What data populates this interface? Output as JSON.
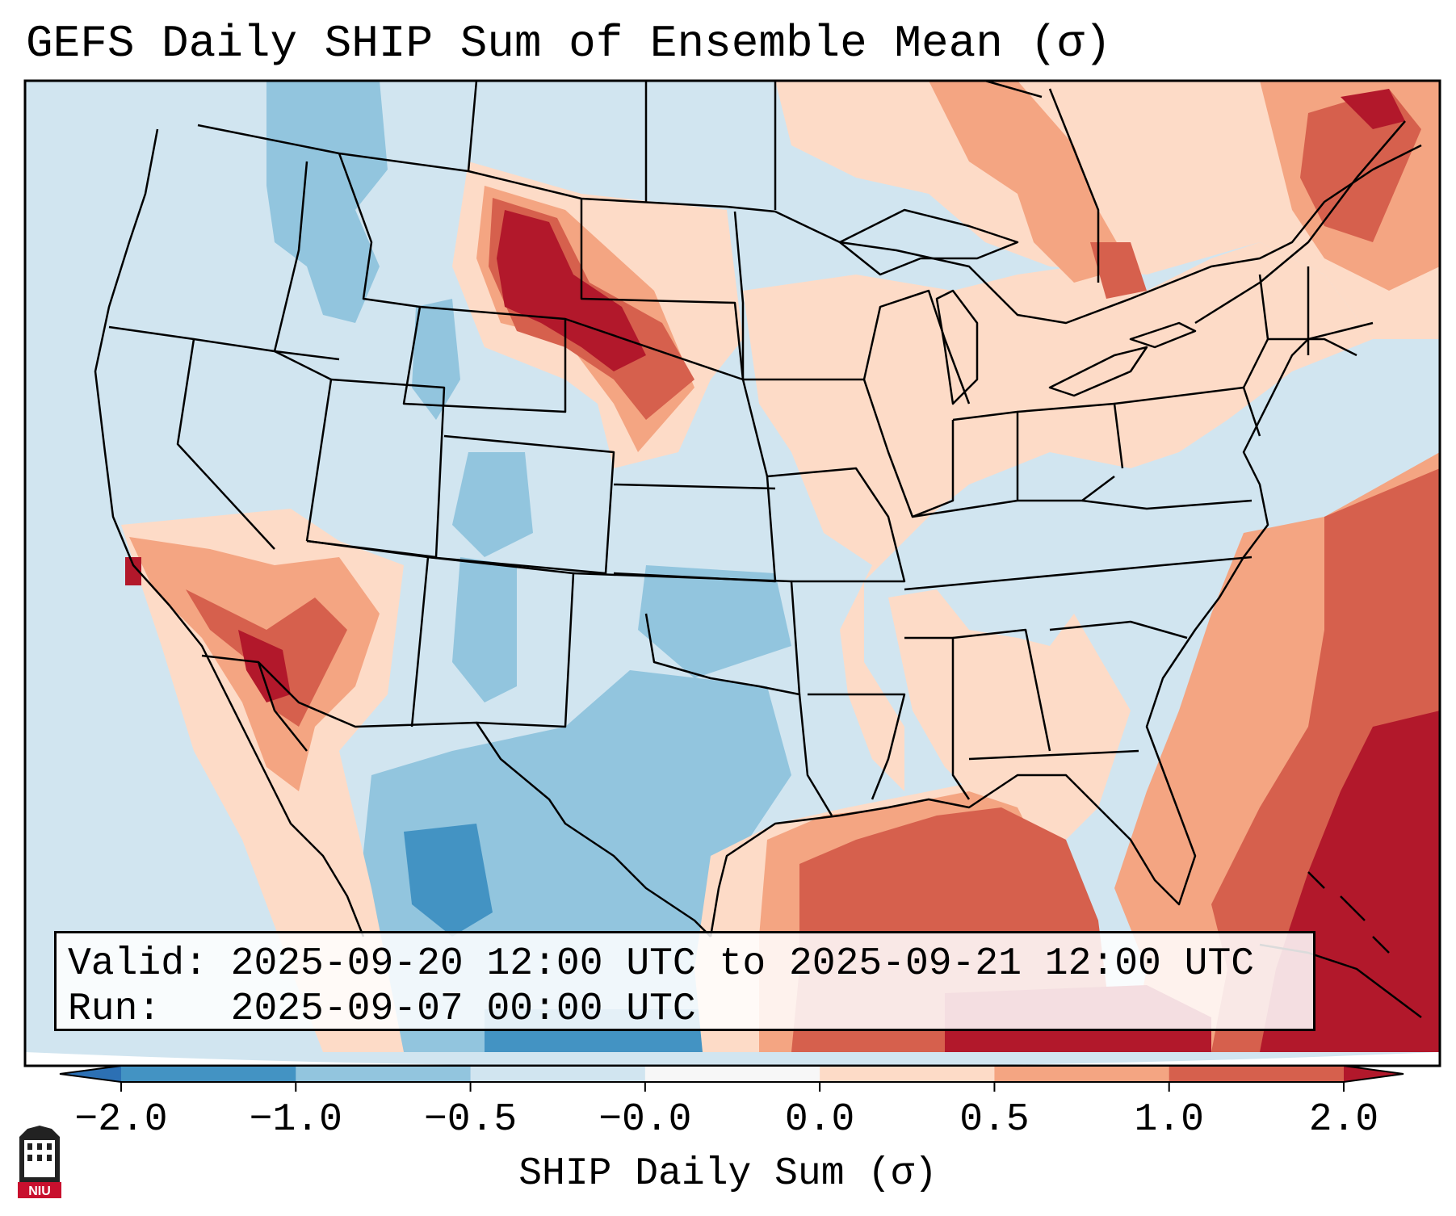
{
  "title": "GEFS Daily SHIP Sum of Ensemble Mean (σ)",
  "info": {
    "valid_label": "Valid:",
    "valid_value": "2025-09-20 12:00 UTC to 2025-09-21 12:00 UTC",
    "run_label": "Run:",
    "run_value": "2025-09-07 00:00 UTC"
  },
  "colorbar": {
    "label": "SHIP Daily Sum (σ)",
    "ticks": [
      "−2.0",
      "−1.0",
      "−0.5",
      "−0.0",
      "0.0",
      "0.5",
      "1.0",
      "2.0"
    ],
    "bins": [
      {
        "range": "< -2.0",
        "color": "#2c70b4"
      },
      {
        "range": "-2.0 to -1.0",
        "color": "#4393c3"
      },
      {
        "range": "-1.0 to -0.5",
        "color": "#92c5de"
      },
      {
        "range": "-0.5 to -0.0",
        "color": "#d1e5f0"
      },
      {
        "range": "-0.0 to 0.0",
        "color": "#f7f7f7"
      },
      {
        "range": "0.0 to 0.5",
        "color": "#fddbc7"
      },
      {
        "range": "0.5 to 1.0",
        "color": "#f4a582"
      },
      {
        "range": "1.0 to 2.0",
        "color": "#d6604d"
      },
      {
        "range": "> 2.0",
        "color": "#b2182b"
      }
    ]
  },
  "logo": {
    "text": "NIU",
    "icon": "niu-logo-icon"
  }
}
